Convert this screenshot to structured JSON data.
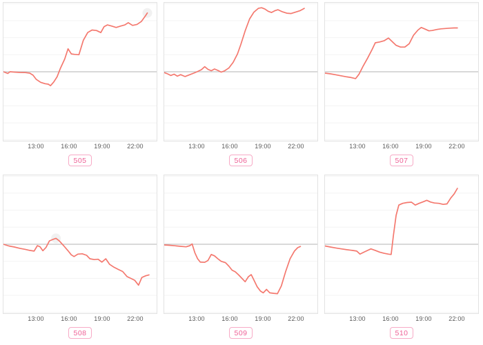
{
  "style": {
    "line_color": "#f4786e",
    "zero_line_color": "#c2c2c2",
    "grid_color": "#f3f3f3",
    "panel_border_color": "#e2e2e2",
    "tick_color": "#595959",
    "badge_text_color": "#ee5f95",
    "badge_border_color": "#f7aac6",
    "halo_color": "rgba(120,120,120,0.10)"
  },
  "chart_data": [
    {
      "type": "line",
      "badge": "505",
      "xlim": [
        10,
        24
      ],
      "ylim": [
        -4.05,
        4.05
      ],
      "grid": "horizontal",
      "zero_line": 0,
      "x_ticks": [
        {
          "hour": 13,
          "label": "13:00"
        },
        {
          "hour": 16,
          "label": "16:00"
        },
        {
          "hour": 19,
          "label": "19:00"
        },
        {
          "hour": 22,
          "label": "22:00"
        }
      ],
      "highlight_index": 37,
      "points": [
        [
          10.0,
          0.0
        ],
        [
          10.4,
          -0.1
        ],
        [
          10.6,
          0.0
        ],
        [
          11.0,
          -0.02
        ],
        [
          11.5,
          -0.04
        ],
        [
          12.0,
          -0.05
        ],
        [
          12.4,
          -0.08
        ],
        [
          12.7,
          -0.2
        ],
        [
          13.0,
          -0.45
        ],
        [
          13.4,
          -0.62
        ],
        [
          13.8,
          -0.7
        ],
        [
          14.1,
          -0.73
        ],
        [
          14.3,
          -0.82
        ],
        [
          14.6,
          -0.6
        ],
        [
          14.9,
          -0.3
        ],
        [
          15.2,
          0.2
        ],
        [
          15.6,
          0.75
        ],
        [
          15.9,
          1.35
        ],
        [
          16.2,
          1.05
        ],
        [
          16.5,
          1.02
        ],
        [
          16.9,
          1.0
        ],
        [
          17.3,
          1.85
        ],
        [
          17.7,
          2.3
        ],
        [
          18.1,
          2.45
        ],
        [
          18.5,
          2.42
        ],
        [
          18.9,
          2.3
        ],
        [
          19.2,
          2.65
        ],
        [
          19.5,
          2.75
        ],
        [
          19.9,
          2.68
        ],
        [
          20.3,
          2.6
        ],
        [
          20.7,
          2.68
        ],
        [
          21.1,
          2.75
        ],
        [
          21.4,
          2.88
        ],
        [
          21.8,
          2.72
        ],
        [
          22.2,
          2.78
        ],
        [
          22.6,
          2.95
        ],
        [
          23.0,
          3.3
        ],
        [
          23.15,
          3.45
        ]
      ]
    },
    {
      "type": "line",
      "badge": "506",
      "xlim": [
        10,
        24
      ],
      "ylim": [
        -4.05,
        4.05
      ],
      "grid": "horizontal",
      "zero_line": 0,
      "x_ticks": [
        {
          "hour": 13,
          "label": "13:00"
        },
        {
          "hour": 16,
          "label": "16:00"
        },
        {
          "hour": 19,
          "label": "19:00"
        },
        {
          "hour": 22,
          "label": "22:00"
        }
      ],
      "highlight_index": null,
      "points": [
        [
          10.0,
          -0.05
        ],
        [
          10.3,
          -0.12
        ],
        [
          10.6,
          -0.22
        ],
        [
          10.9,
          -0.14
        ],
        [
          11.2,
          -0.26
        ],
        [
          11.5,
          -0.17
        ],
        [
          11.9,
          -0.28
        ],
        [
          12.3,
          -0.18
        ],
        [
          12.7,
          -0.08
        ],
        [
          13.0,
          0.0
        ],
        [
          13.4,
          0.12
        ],
        [
          13.7,
          0.3
        ],
        [
          14.0,
          0.14
        ],
        [
          14.3,
          0.06
        ],
        [
          14.6,
          0.16
        ],
        [
          14.9,
          0.08
        ],
        [
          15.2,
          -0.02
        ],
        [
          15.5,
          0.05
        ],
        [
          15.9,
          0.22
        ],
        [
          16.3,
          0.55
        ],
        [
          16.7,
          1.05
        ],
        [
          17.0,
          1.6
        ],
        [
          17.4,
          2.4
        ],
        [
          17.8,
          3.1
        ],
        [
          18.2,
          3.5
        ],
        [
          18.6,
          3.72
        ],
        [
          18.9,
          3.76
        ],
        [
          19.2,
          3.68
        ],
        [
          19.5,
          3.55
        ],
        [
          19.8,
          3.48
        ],
        [
          20.1,
          3.58
        ],
        [
          20.4,
          3.64
        ],
        [
          20.8,
          3.52
        ],
        [
          21.2,
          3.44
        ],
        [
          21.6,
          3.42
        ],
        [
          22.0,
          3.5
        ],
        [
          22.4,
          3.58
        ],
        [
          22.8,
          3.72
        ]
      ]
    },
    {
      "type": "line",
      "badge": "507",
      "xlim": [
        10,
        24
      ],
      "ylim": [
        -4.05,
        4.05
      ],
      "grid": "horizontal",
      "zero_line": 0,
      "x_ticks": [
        {
          "hour": 13,
          "label": "13:00"
        },
        {
          "hour": 16,
          "label": "16:00"
        },
        {
          "hour": 19,
          "label": "19:00"
        },
        {
          "hour": 22,
          "label": "22:00"
        }
      ],
      "highlight_index": null,
      "points": [
        [
          10.0,
          -0.08
        ],
        [
          10.5,
          -0.12
        ],
        [
          11.0,
          -0.18
        ],
        [
          11.5,
          -0.24
        ],
        [
          12.0,
          -0.3
        ],
        [
          12.4,
          -0.34
        ],
        [
          12.8,
          -0.4
        ],
        [
          13.1,
          -0.15
        ],
        [
          13.5,
          0.35
        ],
        [
          13.9,
          0.8
        ],
        [
          14.3,
          1.3
        ],
        [
          14.6,
          1.7
        ],
        [
          15.0,
          1.75
        ],
        [
          15.4,
          1.82
        ],
        [
          15.8,
          1.98
        ],
        [
          16.1,
          1.8
        ],
        [
          16.5,
          1.55
        ],
        [
          16.9,
          1.45
        ],
        [
          17.3,
          1.45
        ],
        [
          17.7,
          1.65
        ],
        [
          18.1,
          2.15
        ],
        [
          18.5,
          2.45
        ],
        [
          18.8,
          2.6
        ],
        [
          19.1,
          2.52
        ],
        [
          19.5,
          2.4
        ],
        [
          19.8,
          2.42
        ],
        [
          20.2,
          2.48
        ],
        [
          20.6,
          2.52
        ],
        [
          21.0,
          2.54
        ],
        [
          21.4,
          2.56
        ],
        [
          21.8,
          2.57
        ],
        [
          22.1,
          2.57
        ]
      ]
    },
    {
      "type": "line",
      "badge": "508",
      "xlim": [
        10,
        24
      ],
      "ylim": [
        -4.05,
        4.05
      ],
      "grid": "horizontal",
      "zero_line": 0,
      "x_ticks": [
        {
          "hour": 13,
          "label": "13:00"
        },
        {
          "hour": 16,
          "label": "16:00"
        },
        {
          "hour": 19,
          "label": "19:00"
        },
        {
          "hour": 22,
          "label": "22:00"
        }
      ],
      "highlight_index": 13,
      "points": [
        [
          10.0,
          0.0
        ],
        [
          10.5,
          -0.1
        ],
        [
          11.0,
          -0.16
        ],
        [
          11.5,
          -0.24
        ],
        [
          12.0,
          -0.3
        ],
        [
          12.4,
          -0.36
        ],
        [
          12.8,
          -0.4
        ],
        [
          13.1,
          -0.08
        ],
        [
          13.35,
          -0.15
        ],
        [
          13.6,
          -0.38
        ],
        [
          13.9,
          -0.18
        ],
        [
          14.2,
          0.2
        ],
        [
          14.5,
          0.28
        ],
        [
          14.8,
          0.35
        ],
        [
          15.1,
          0.2
        ],
        [
          15.5,
          -0.08
        ],
        [
          15.9,
          -0.38
        ],
        [
          16.2,
          -0.62
        ],
        [
          16.45,
          -0.72
        ],
        [
          16.8,
          -0.58
        ],
        [
          17.2,
          -0.56
        ],
        [
          17.6,
          -0.65
        ],
        [
          17.9,
          -0.85
        ],
        [
          18.3,
          -0.9
        ],
        [
          18.65,
          -0.88
        ],
        [
          19.0,
          -1.05
        ],
        [
          19.35,
          -0.85
        ],
        [
          19.7,
          -1.18
        ],
        [
          20.1,
          -1.35
        ],
        [
          20.5,
          -1.48
        ],
        [
          20.9,
          -1.6
        ],
        [
          21.3,
          -1.9
        ],
        [
          21.7,
          -2.02
        ],
        [
          22.0,
          -2.12
        ],
        [
          22.35,
          -2.4
        ],
        [
          22.65,
          -1.95
        ],
        [
          23.0,
          -1.85
        ],
        [
          23.3,
          -1.8
        ]
      ]
    },
    {
      "type": "line",
      "badge": "509",
      "xlim": [
        10,
        24
      ],
      "ylim": [
        -4.05,
        4.05
      ],
      "grid": "horizontal",
      "zero_line": 0,
      "x_ticks": [
        {
          "hour": 13,
          "label": "13:00"
        },
        {
          "hour": 16,
          "label": "16:00"
        },
        {
          "hour": 19,
          "label": "19:00"
        },
        {
          "hour": 22,
          "label": "22:00"
        }
      ],
      "highlight_index": null,
      "points": [
        [
          10.0,
          -0.04
        ],
        [
          10.5,
          -0.06
        ],
        [
          11.0,
          -0.09
        ],
        [
          11.5,
          -0.12
        ],
        [
          12.0,
          -0.15
        ],
        [
          12.35,
          -0.08
        ],
        [
          12.55,
          0.02
        ],
        [
          12.8,
          -0.5
        ],
        [
          13.05,
          -0.85
        ],
        [
          13.3,
          -1.05
        ],
        [
          13.7,
          -1.06
        ],
        [
          14.0,
          -0.95
        ],
        [
          14.3,
          -0.6
        ],
        [
          14.6,
          -0.68
        ],
        [
          14.9,
          -0.85
        ],
        [
          15.2,
          -1.0
        ],
        [
          15.6,
          -1.08
        ],
        [
          15.9,
          -1.28
        ],
        [
          16.2,
          -1.52
        ],
        [
          16.5,
          -1.62
        ],
        [
          16.8,
          -1.8
        ],
        [
          17.1,
          -2.0
        ],
        [
          17.4,
          -2.2
        ],
        [
          17.7,
          -1.9
        ],
        [
          17.95,
          -1.78
        ],
        [
          18.2,
          -2.1
        ],
        [
          18.5,
          -2.5
        ],
        [
          18.8,
          -2.75
        ],
        [
          19.05,
          -2.85
        ],
        [
          19.35,
          -2.65
        ],
        [
          19.65,
          -2.85
        ],
        [
          20.0,
          -2.88
        ],
        [
          20.35,
          -2.9
        ],
        [
          20.7,
          -2.45
        ],
        [
          21.1,
          -1.6
        ],
        [
          21.5,
          -0.85
        ],
        [
          21.9,
          -0.4
        ],
        [
          22.2,
          -0.2
        ],
        [
          22.45,
          -0.13
        ]
      ]
    },
    {
      "type": "line",
      "badge": "510",
      "xlim": [
        10,
        24
      ],
      "ylim": [
        -4.05,
        4.05
      ],
      "grid": "horizontal",
      "zero_line": 0,
      "x_ticks": [
        {
          "hour": 13,
          "label": "13:00"
        },
        {
          "hour": 16,
          "label": "16:00"
        },
        {
          "hour": 19,
          "label": "19:00"
        },
        {
          "hour": 22,
          "label": "22:00"
        }
      ],
      "highlight_index": null,
      "points": [
        [
          10.0,
          -0.1
        ],
        [
          10.5,
          -0.16
        ],
        [
          11.0,
          -0.22
        ],
        [
          11.5,
          -0.27
        ],
        [
          12.0,
          -0.32
        ],
        [
          12.5,
          -0.36
        ],
        [
          12.9,
          -0.4
        ],
        [
          13.2,
          -0.58
        ],
        [
          13.5,
          -0.48
        ],
        [
          13.9,
          -0.36
        ],
        [
          14.2,
          -0.27
        ],
        [
          14.6,
          -0.36
        ],
        [
          15.0,
          -0.46
        ],
        [
          15.4,
          -0.53
        ],
        [
          15.8,
          -0.58
        ],
        [
          16.05,
          -0.6
        ],
        [
          16.25,
          0.5
        ],
        [
          16.5,
          1.7
        ],
        [
          16.75,
          2.3
        ],
        [
          17.1,
          2.4
        ],
        [
          17.5,
          2.45
        ],
        [
          17.9,
          2.47
        ],
        [
          18.25,
          2.3
        ],
        [
          18.6,
          2.4
        ],
        [
          19.0,
          2.5
        ],
        [
          19.3,
          2.58
        ],
        [
          19.65,
          2.48
        ],
        [
          20.0,
          2.42
        ],
        [
          20.4,
          2.4
        ],
        [
          20.8,
          2.34
        ],
        [
          21.15,
          2.37
        ],
        [
          21.5,
          2.72
        ],
        [
          21.8,
          2.95
        ],
        [
          22.1,
          3.28
        ]
      ]
    }
  ]
}
